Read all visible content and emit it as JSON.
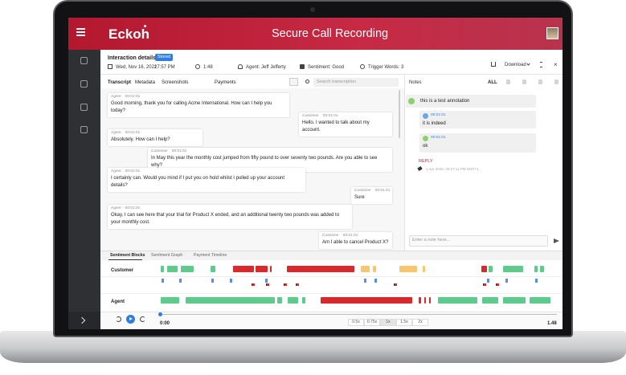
{
  "header": {
    "logo": "Eckoh",
    "title": "Secure Call Recording"
  },
  "interaction": {
    "title": "Interaction details",
    "status": "Stored",
    "date": "Wed, Nov 16, 2022",
    "time": "17:57 PM",
    "duration": "1:48",
    "agent": "Agent: Jeff Jefferty",
    "sentiment": "Sentiment: Good",
    "trigger_words": "Trigger Words: 3",
    "download": "Download"
  },
  "tabs": [
    "Transcript",
    "Metadata",
    "Screenshots",
    "Payments"
  ],
  "search_placeholder": "Search transcription",
  "transcript": [
    {
      "speaker": "Agent",
      "time": "00:01:01",
      "text": "Good morning, thank you for calling Acme International. How can I help you today?"
    },
    {
      "speaker": "Customer",
      "time": "00:01:01",
      "text": "Hello. I wanted to talk about my account."
    },
    {
      "speaker": "Agent",
      "time": "00:01:01",
      "text": "Absolutely. How can I help?"
    },
    {
      "speaker": "Customer",
      "time": "00:01:01",
      "text": "In May this year the monthly cost jumped from fifty pound to over seventy two pounds. Are you able to see why?"
    },
    {
      "speaker": "Agent",
      "time": "00:01:01",
      "text": "I certainly can. Would you mind if I put you on hold whilst I pulled up your account details?"
    },
    {
      "speaker": "Customer",
      "time": "00:01:01",
      "text": "Sure"
    },
    {
      "speaker": "Agent",
      "time": "00:01:01",
      "text": "Okay, I can see here that your trial for Product X ended, and an additional twenty two pounds was added to your monthly cost."
    },
    {
      "speaker": "Customer",
      "time": "00:01:01",
      "text": "Am I able to cancel Product X?"
    }
  ],
  "notes": {
    "title": "Notes",
    "filter": "ALL",
    "items": [
      {
        "text": "this is a test annotation",
        "replies": [
          {
            "time": "00:01:01",
            "text": "it is indeed"
          },
          {
            "time": "00:01:01",
            "text": "ok"
          }
        ]
      }
    ],
    "reply": "REPLY",
    "timestamp": "1 Apr 2025, 00:27:11 PM GMT+1",
    "input_placeholder": "Enter a note here..."
  },
  "sentiment_panel": {
    "tabs": [
      "Sentiment Blocks",
      "Sentiment Graph",
      "Payment Timeline"
    ],
    "rows": [
      "Customer",
      "Agent"
    ]
  },
  "player": {
    "position": "0:00",
    "duration": "1.48",
    "speeds": [
      "0.5x",
      "0.75x",
      "1x",
      "1.5x",
      "2x"
    ]
  }
}
